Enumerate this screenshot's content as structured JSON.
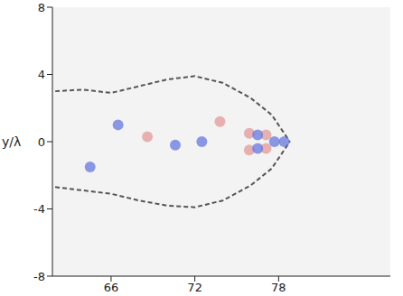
{
  "chart_data": {
    "type": "scatter",
    "y_label": "y/λ",
    "xlim": [
      61.8,
      86
    ],
    "xticks": [
      66,
      72,
      78
    ],
    "ylim": [
      -8,
      8
    ],
    "yticks": [
      -8,
      -4,
      0,
      4,
      8
    ],
    "grid": false,
    "series": [
      {
        "type": "line",
        "color": "#555555",
        "line_style": "dashed",
        "marker": "none",
        "x": [
          62,
          64,
          66,
          68,
          70,
          72,
          74,
          76,
          77.5,
          78.8
        ],
        "y": [
          3.0,
          3.1,
          2.9,
          3.3,
          3.7,
          3.9,
          3.5,
          2.6,
          1.6,
          0
        ]
      },
      {
        "type": "line",
        "color": "#555555",
        "line_style": "dashed",
        "marker": "none",
        "x": [
          62,
          64,
          66,
          68,
          70,
          72,
          74,
          76,
          77.5,
          78.8
        ],
        "y": [
          -2.7,
          -2.9,
          -3.1,
          -3.5,
          -3.8,
          -3.9,
          -3.5,
          -2.6,
          -1.6,
          0
        ]
      },
      {
        "type": "scatter",
        "color": "#e39a9a",
        "marker": "circle",
        "x": [
          75.9,
          75.9,
          77.1,
          77.1,
          68.6,
          73.8
        ],
        "y": [
          0.5,
          -0.5,
          0.4,
          -0.4,
          0.3,
          1.2
        ]
      },
      {
        "type": "scatter",
        "color": "#6677dd",
        "marker": "circle",
        "x": [
          76.5,
          76.5,
          77.7,
          78.4,
          72.5,
          70.6,
          66.5,
          64.5
        ],
        "y": [
          0.4,
          -0.4,
          0,
          0,
          0,
          -0.2,
          1.0,
          -1.5
        ]
      }
    ]
  }
}
